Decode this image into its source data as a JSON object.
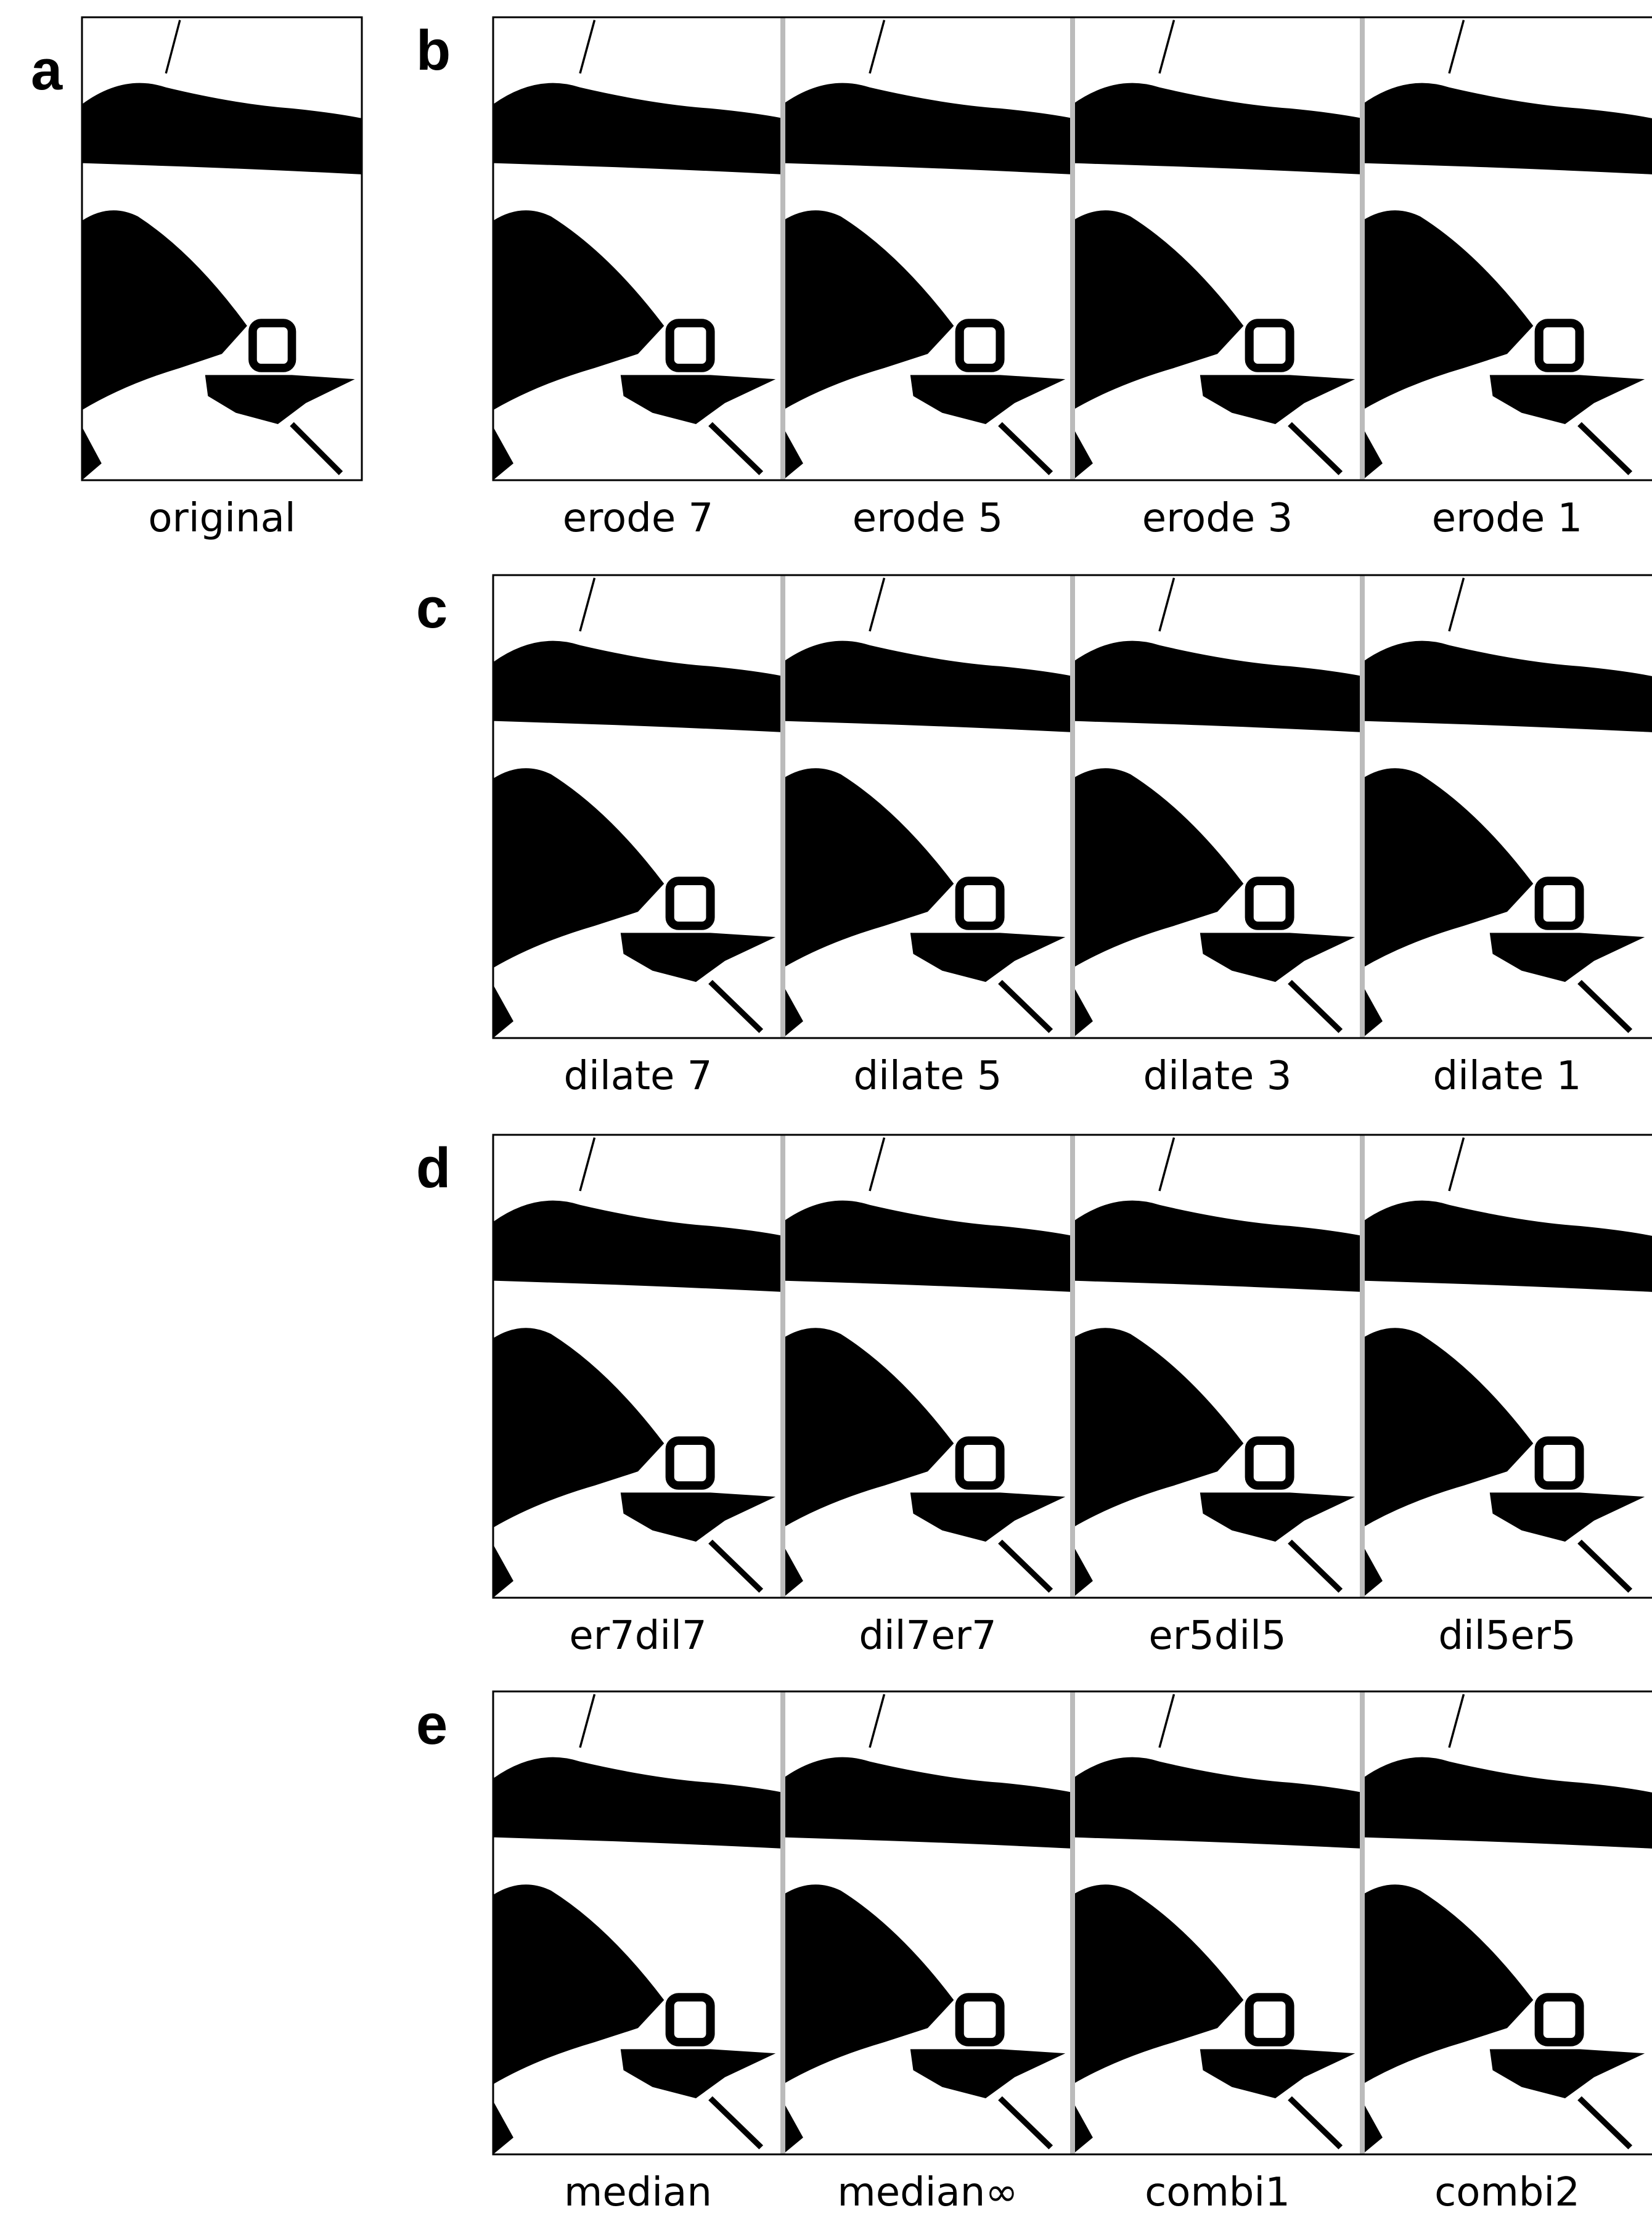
{
  "panel_a": {
    "label": "a",
    "caption": "original"
  },
  "rows": [
    {
      "label": "b",
      "captions": [
        "erode 7",
        "erode 5",
        "erode 3",
        "erode 1"
      ]
    },
    {
      "label": "c",
      "captions": [
        "dilate 7",
        "dilate 5",
        "dilate 3",
        "dilate 1"
      ]
    },
    {
      "label": "d",
      "captions": [
        "er7dil7",
        "dil7er7",
        "er5dil5",
        "dil5er5"
      ]
    },
    {
      "label": "e",
      "captions": [
        "median",
        "median∞",
        "combi1",
        "combi2"
      ]
    }
  ]
}
